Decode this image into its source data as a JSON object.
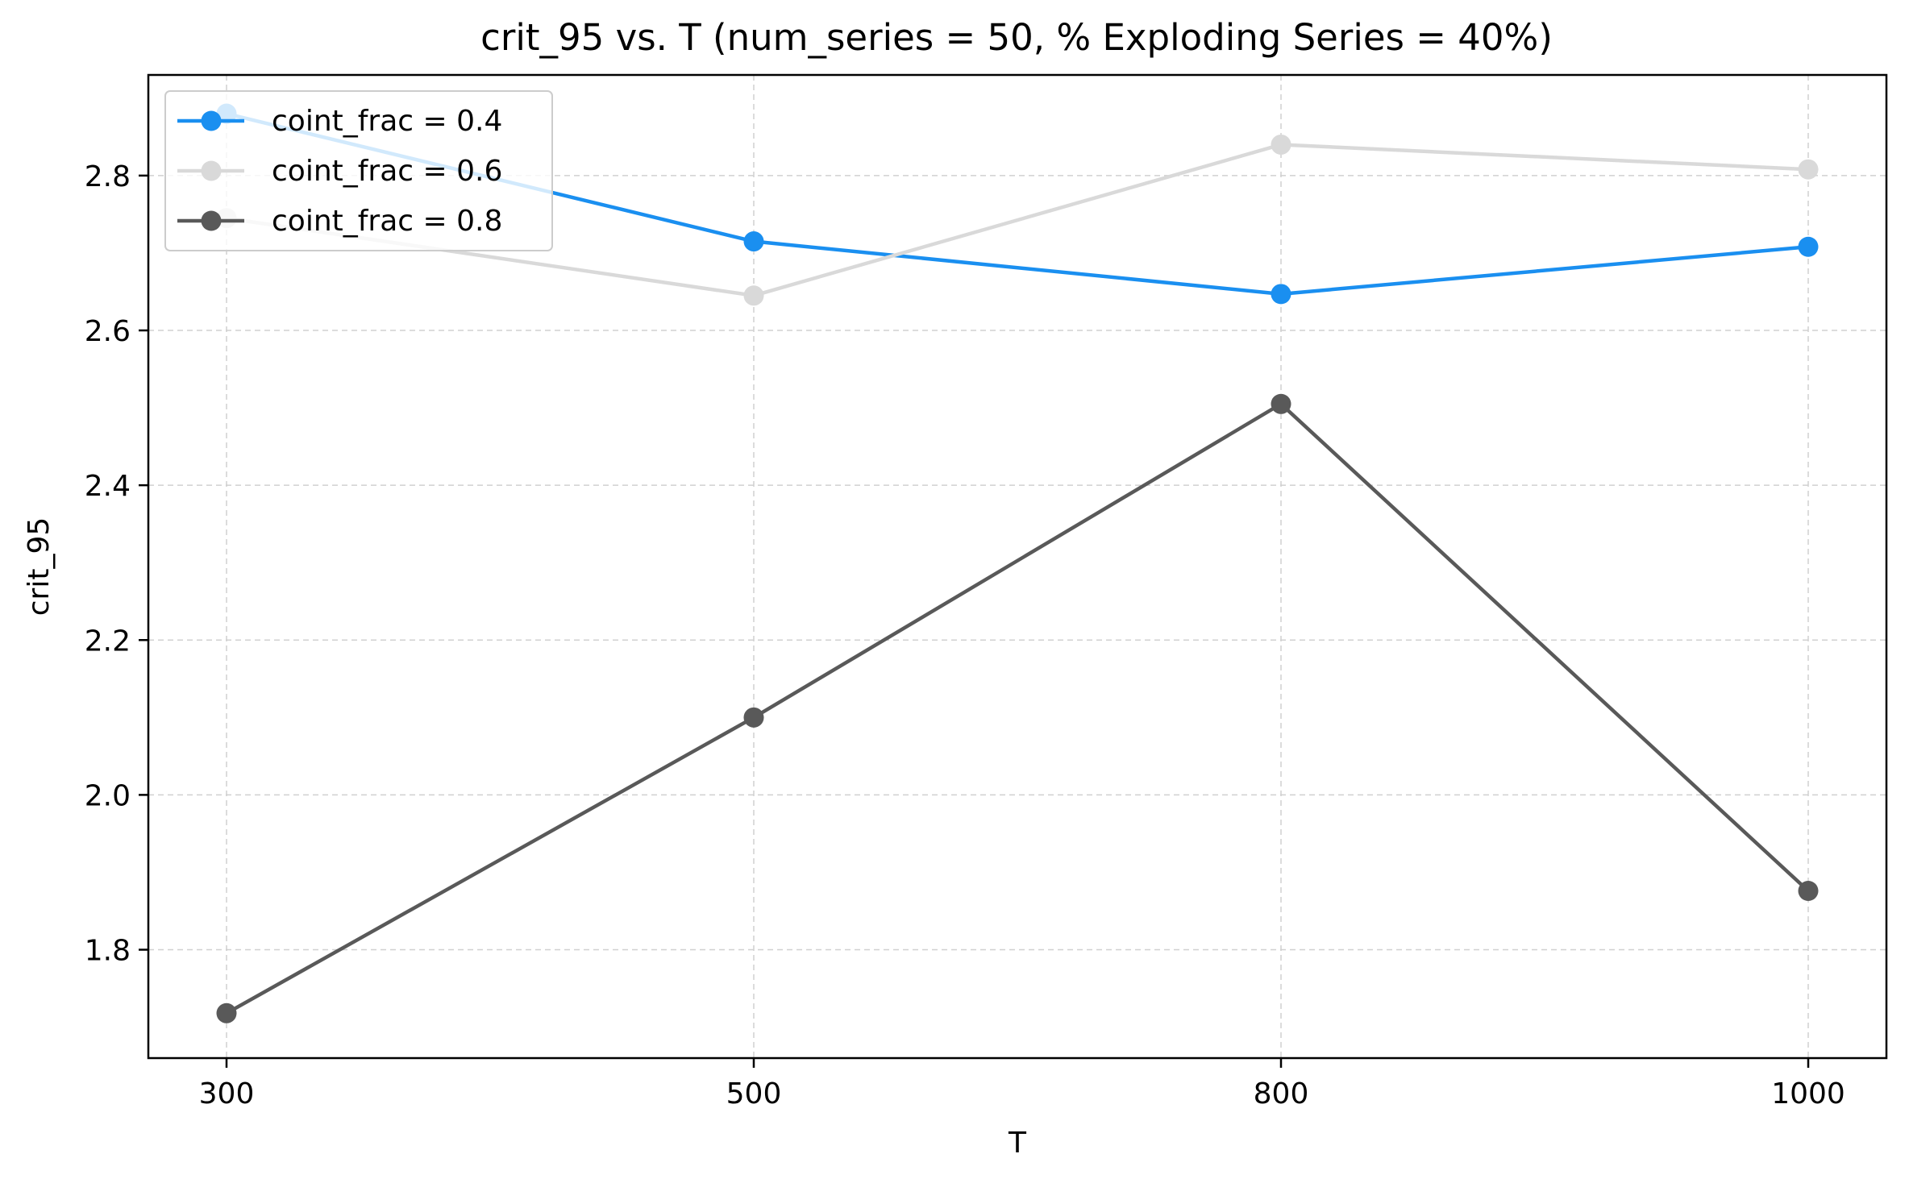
{
  "chart_data": {
    "type": "line",
    "title": "crit_95 vs. T  (num_series = 50, % Exploding Series = 40%)",
    "xlabel": "T",
    "ylabel": "crit_95",
    "categories": [
      "300",
      "500",
      "800",
      "1000"
    ],
    "ylim": [
      1.66,
      2.93
    ],
    "yticks": [
      "1.8",
      "2.0",
      "2.2",
      "2.4",
      "2.6",
      "2.8"
    ],
    "grid": true,
    "legend_position": "upper-left",
    "series": [
      {
        "name": "coint_frac = 0.4",
        "color": "#1a8ff0",
        "values": [
          2.88,
          2.715,
          2.647,
          2.708
        ]
      },
      {
        "name": "coint_frac = 0.6",
        "color": "#d9d9d9",
        "values": [
          2.745,
          2.645,
          2.84,
          2.808
        ]
      },
      {
        "name": "coint_frac = 0.8",
        "color": "#595959",
        "values": [
          1.718,
          2.1,
          2.505,
          1.876
        ]
      }
    ]
  }
}
